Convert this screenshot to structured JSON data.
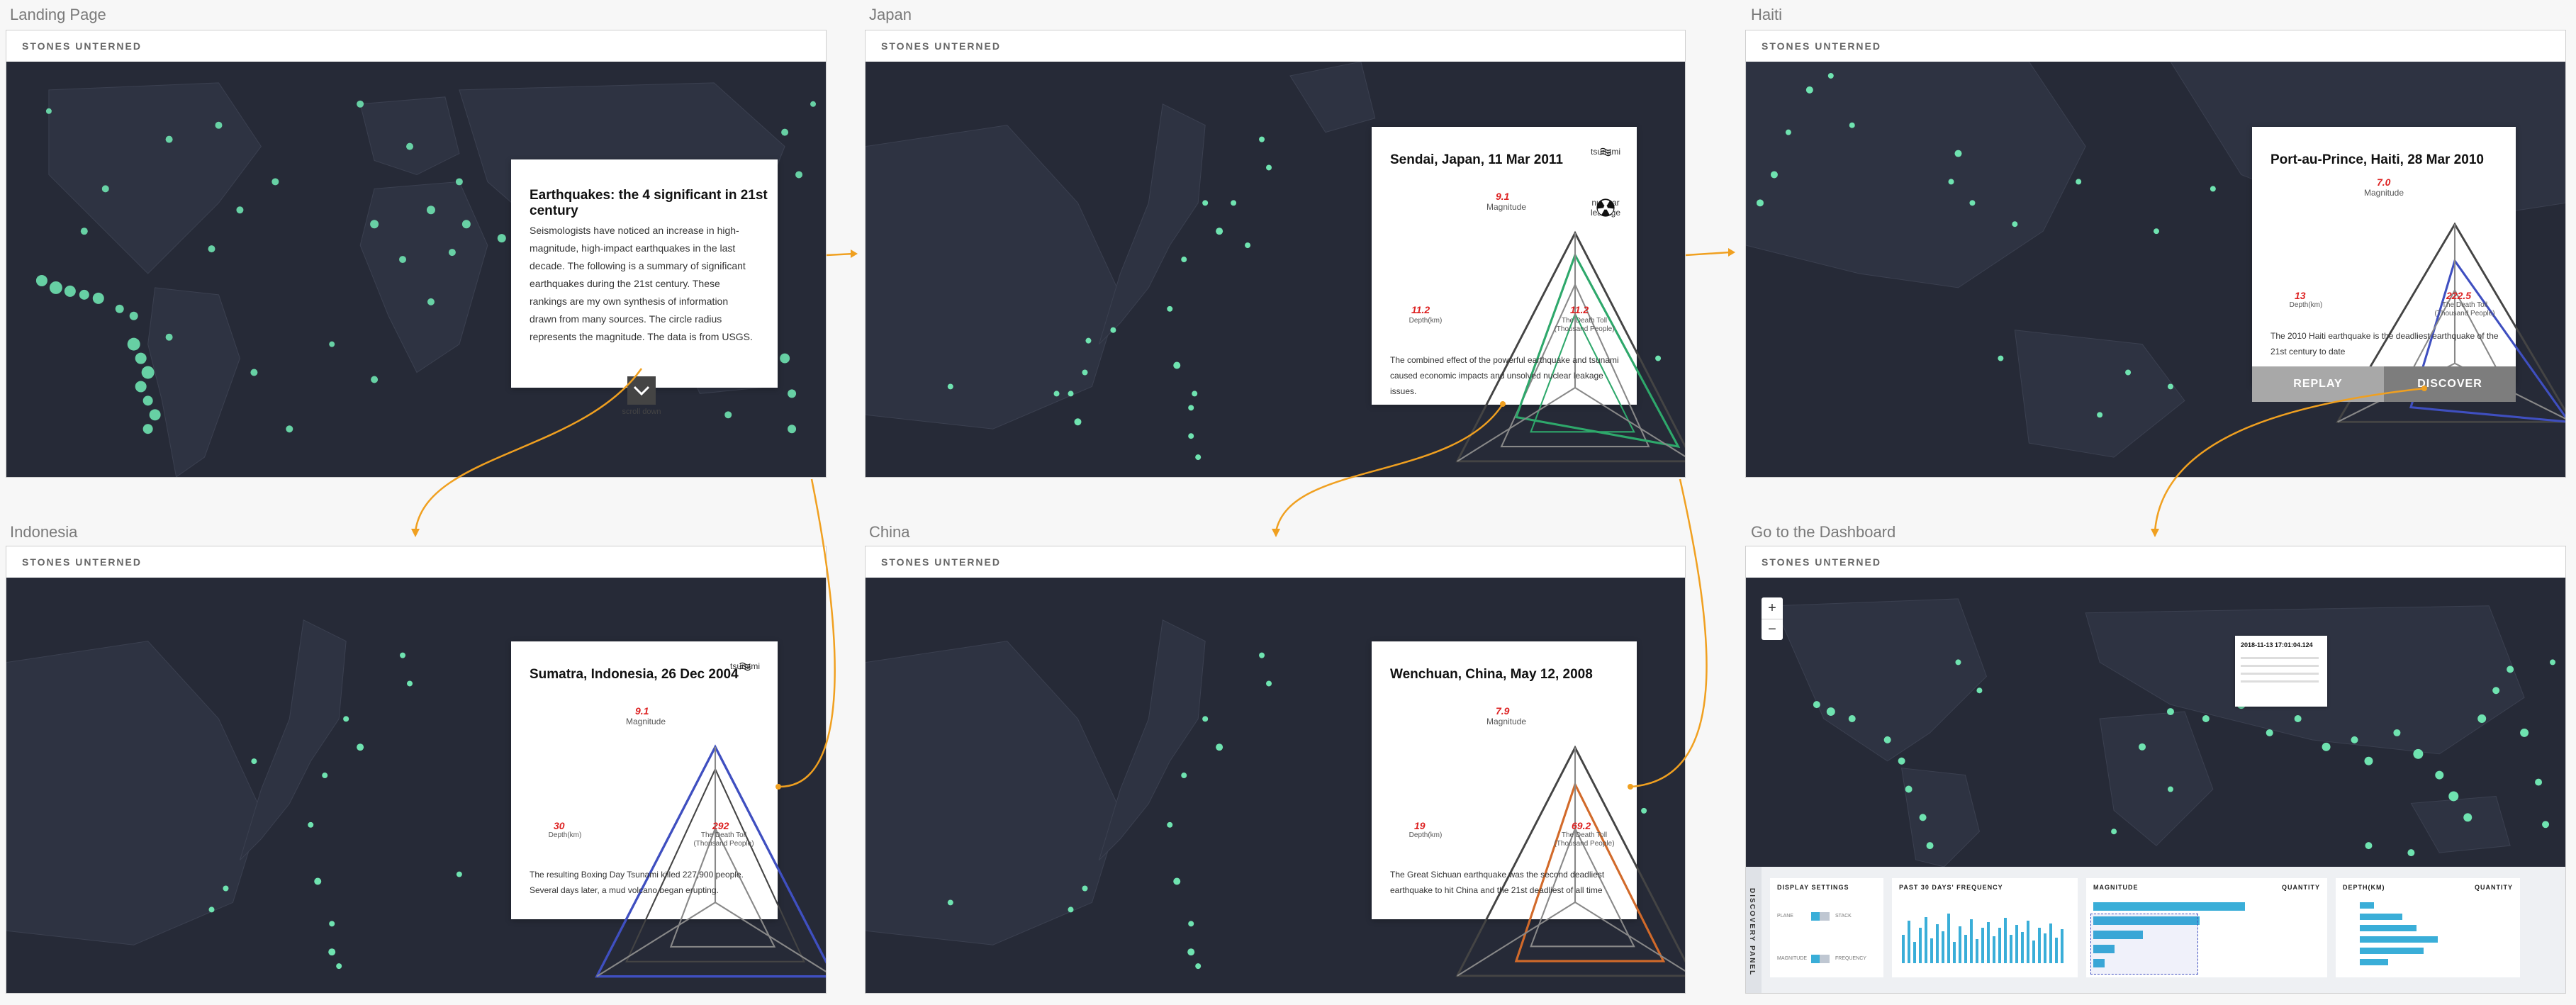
{
  "brand": "STONES UNTERNED",
  "frames": {
    "landing": {
      "label": "Landing Page",
      "title": "Earthquakes: the 4 significant in 21st century",
      "body": "Seismologists have noticed an increase in high-magnitude, high-impact earthquakes in the last decade. The following is a summary of significant earthquakes during the 21st century. These rankings are my own synthesis of information drawn from many sources. The circle radius represents the magnitude. The data is from USGS.",
      "scroll_label": "scroll down"
    },
    "japan": {
      "label": "Japan",
      "title": "Sendai, Japan, 11 Mar 2011",
      "magnitude": "9.1",
      "depth": "11.2",
      "toll": "11.2",
      "badge1": "tsunami",
      "badge2": "nuclear leakage",
      "body": "The combined effect of the powerful earthquake and tsunami caused economic impacts and unsolved nuclear leakage issues."
    },
    "haiti": {
      "label": "Haiti",
      "title": "Port-au-Prince, Haiti, 28 Mar 2010",
      "magnitude": "7.0",
      "depth": "13",
      "toll": "222.5",
      "body": "The 2010 Haiti earthquake is the deadliest earthquake of the 21st century to date",
      "replay": "REPLAY",
      "discover": "DISCOVER"
    },
    "indonesia": {
      "label": "Indonesia",
      "title": "Sumatra, Indonesia, 26 Dec 2004",
      "magnitude": "9.1",
      "depth": "30",
      "toll": "292",
      "badge1": "tsunami",
      "body": "The resulting Boxing Day Tsunami killed 227,900 people. Several days later, a mud volcano began erupting."
    },
    "china": {
      "label": "China",
      "title": "Wenchuan, China, May 12, 2008",
      "magnitude": "7.9",
      "depth": "19",
      "toll": "69.2",
      "body": "The Great Sichuan earthquake was the second deadliest earthquake to hit China and the 21st deadliest of all time"
    },
    "dashboard": {
      "label": "Go to the Dashboard",
      "zoom_in": "+",
      "zoom_out": "−",
      "tooltip_time": "2018-11-13 17:01:04.124",
      "discovery": "DISCOVERY PANEL",
      "display_settings": "DISPLAY SETTINGS",
      "plane": "PLANE",
      "stack": "STACK",
      "magnitude_opt": "MAGNITUDE",
      "frequency_opt": "FREQUENCY",
      "freq_title": "PAST 30 DAYS' FREQUENCY",
      "mag_title": "MAGNITUDE",
      "quantity": "QUANTITY",
      "depth_title": "DEPTH(KM)"
    }
  },
  "axis": {
    "magnitude": "Magnitude",
    "depth": "Depth(km)",
    "toll": "The Death Toll (Thousand People)"
  },
  "colors": {
    "map_bg": "#262a37",
    "dot": "#6fe3b0",
    "arrow": "#f0a020",
    "accent": "#3aaed8"
  }
}
